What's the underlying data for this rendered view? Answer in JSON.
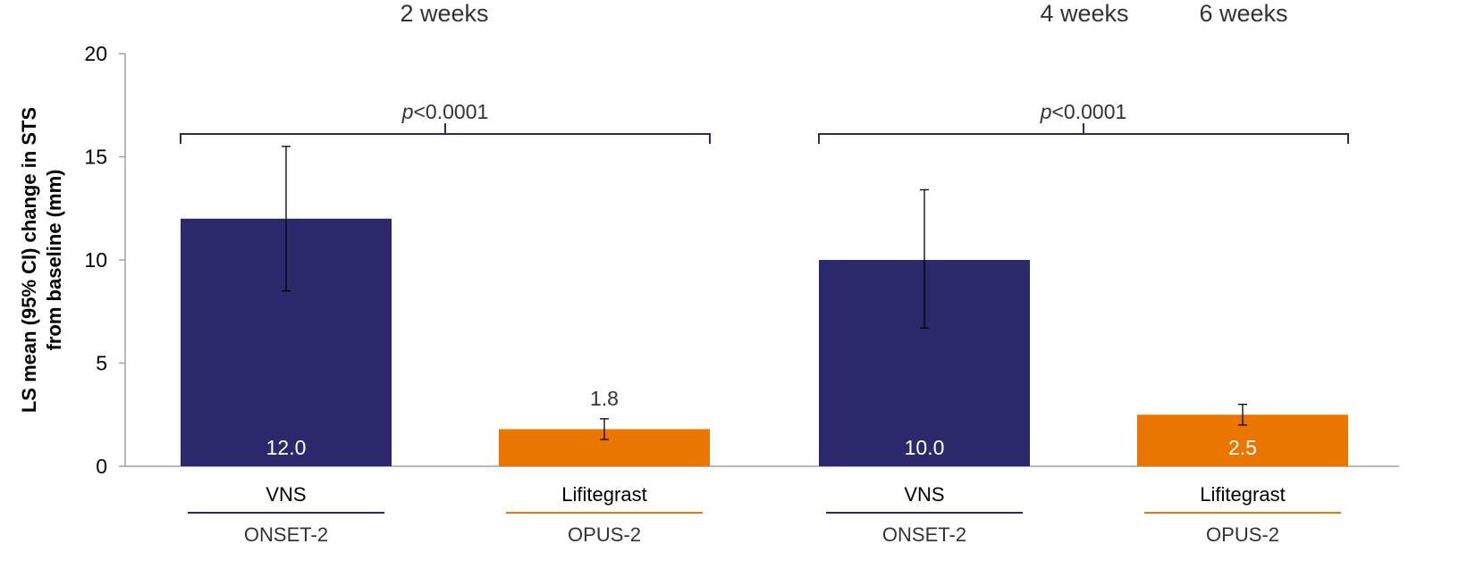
{
  "chart_data": {
    "type": "bar",
    "ylabel_lines": [
      "LS mean (95% CI) change in STS",
      "from baseline (mm)"
    ],
    "ylim": [
      0,
      20
    ],
    "yticks": [
      0,
      5,
      10,
      15,
      20
    ],
    "timepoints": [
      "2 weeks",
      "4 weeks",
      "6 weeks"
    ],
    "bars": [
      {
        "treatment": "VNS",
        "study": "ONSET-2",
        "value": 12.0,
        "label": "12.0",
        "ci": [
          8.5,
          15.5
        ],
        "color": "#2b286b",
        "label_inside": true
      },
      {
        "treatment": "Lifitegrast",
        "study": "OPUS-2",
        "value": 1.8,
        "label": "1.8",
        "ci": [
          1.3,
          2.3
        ],
        "color": "#ea7600",
        "label_inside": false
      },
      {
        "treatment": "VNS",
        "study": "ONSET-2",
        "value": 10.0,
        "label": "10.0",
        "ci": [
          6.7,
          13.4
        ],
        "color": "#2b286b",
        "label_inside": true
      },
      {
        "treatment": "Lifitegrast",
        "study": "OPUS-2",
        "value": 2.5,
        "label": "2.5",
        "ci": [
          2.0,
          3.0
        ],
        "color": "#ea7600",
        "label_inside": true
      }
    ],
    "comparisons": [
      {
        "bars": [
          0,
          1
        ],
        "p_prefix": "p",
        "p_text": "<0.0001"
      },
      {
        "bars": [
          2,
          3
        ],
        "p_prefix": "p",
        "p_text": "<0.0001"
      }
    ],
    "grid": false,
    "colors": {
      "vns": "#2b286b",
      "lifitegrast": "#ea7600",
      "bracket": "#2b286b",
      "axis": "#a0a0a0",
      "text": "#333333"
    }
  }
}
